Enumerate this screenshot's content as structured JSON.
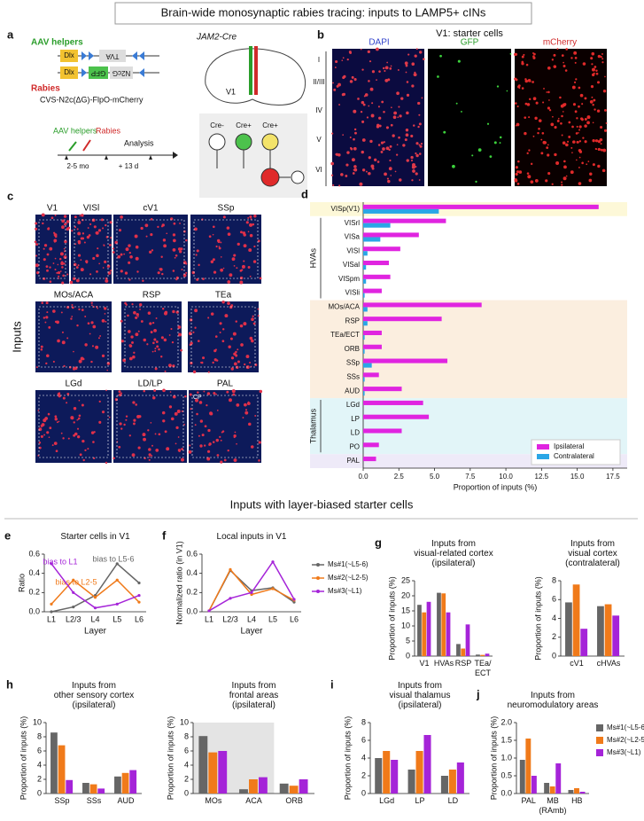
{
  "title": "Brain-wide monosynaptic rabies tracing: inputs to LAMP5+ cINs",
  "section_title": "Inputs with layer-biased starter cells",
  "panels": {
    "a": {
      "letter": "a",
      "aav": "AAV helpers",
      "constructs": [
        "Dlx",
        "TVA",
        "Dlx",
        "GFP",
        "N2cG"
      ],
      "rabies": "Rabies",
      "construct": "CVS-N2c(ΔG)-FlpO-mCherry",
      "mouse": "JAM2-Cre",
      "area": "V1",
      "timeline": [
        "AAV helpers",
        "Rabies",
        "Analysis",
        "2-5 mo",
        "+ 13 d"
      ],
      "cre": [
        "Cre-",
        "Cre+",
        "Cre+"
      ]
    },
    "b": {
      "letter": "b",
      "title": "V1: starter cells",
      "channels": [
        "DAPI",
        "GFP",
        "mCherry"
      ],
      "layers": [
        "I",
        "II/III",
        "IV",
        "V",
        "VI"
      ]
    },
    "c": {
      "letter": "c",
      "regions": [
        "V1",
        "VISl",
        "cV1",
        "SSp",
        "MOs/ACA",
        "RSP",
        "TEa",
        "LGd",
        "LD/LP",
        "PAL"
      ],
      "inset": "CP",
      "side": "Inputs"
    }
  },
  "chart_data": [
    {
      "type": "hbar",
      "panel": "d",
      "categories": [
        "VISp(V1)",
        "VISrl",
        "VISa",
        "VISl",
        "VISal",
        "VISpm",
        "VISli",
        "MOs/ACA",
        "RSP",
        "TEa/ECT",
        "ORB",
        "SSp",
        "SSs",
        "AUD",
        "LGd",
        "LP",
        "LD",
        "PO",
        "PAL"
      ],
      "series": [
        {
          "name": "Ipsilateral",
          "color": "#e024e0",
          "values": [
            16.5,
            5.8,
            3.9,
            2.6,
            1.8,
            1.9,
            1.3,
            8.3,
            5.5,
            1.3,
            1.3,
            5.9,
            1.1,
            2.7,
            4.2,
            4.6,
            2.7,
            1.1,
            0.9
          ]
        },
        {
          "name": "Contralateral",
          "color": "#2aa6e6",
          "values": [
            5.3,
            1.9,
            1.2,
            0.3,
            0.2,
            0.2,
            0.1,
            0.3,
            0.3,
            0.1,
            0.1,
            0.6,
            0.1,
            0.1,
            0,
            0,
            0,
            0,
            0
          ]
        }
      ],
      "xlim": [
        0,
        18.5
      ],
      "xticks": [
        {
          "value": 0,
          "label": "0.0"
        },
        {
          "value": 2.5,
          "label": "2.5"
        },
        {
          "value": 5,
          "label": "5.0"
        },
        {
          "value": 7.5,
          "label": "7.5"
        },
        {
          "value": 10,
          "label": "10.0"
        },
        {
          "value": 12.5,
          "label": "12.5"
        },
        {
          "value": 15,
          "label": "15.0"
        },
        {
          "value": 17.5,
          "label": "17.5"
        }
      ],
      "xlabel": "Proportion of inputs (%)",
      "annotations": [
        "HVAs",
        "Thalamus"
      ],
      "legend": "lower right"
    },
    {
      "type": "line",
      "panel": "e",
      "title": "Starter cells in V1",
      "categories": [
        "L1",
        "L2/3",
        "L4",
        "L5",
        "L6"
      ],
      "series": [
        {
          "name": "bias to L5-6",
          "color": "#666666",
          "values": [
            0,
            0.05,
            0.17,
            0.5,
            0.3
          ]
        },
        {
          "name": "bias to L2-5",
          "color": "#f07a1a",
          "values": [
            0.08,
            0.33,
            0.15,
            0.33,
            0.1
          ]
        },
        {
          "name": "bias to L1",
          "color": "#a524d8",
          "values": [
            0.5,
            0.2,
            0.04,
            0.08,
            0.17
          ]
        }
      ],
      "ylim": [
        0,
        0.6
      ],
      "yticks": [
        {
          "value": 0,
          "label": "0.0"
        },
        {
          "value": 0.2,
          "label": "0.2"
        },
        {
          "value": 0.4,
          "label": "0.4"
        },
        {
          "value": 0.6,
          "label": "0.6"
        }
      ],
      "xlabel": "Layer",
      "ylabel": "Ratio",
      "legend": "inline"
    },
    {
      "type": "line",
      "panel": "f",
      "title": "Local inputs in V1",
      "categories": [
        "L1",
        "L2/3",
        "L4",
        "L5",
        "L6"
      ],
      "series": [
        {
          "name": "Ms#1(~L5-6)",
          "color": "#666666",
          "values": [
            0.01,
            0.43,
            0.22,
            0.25,
            0.1
          ]
        },
        {
          "name": "Ms#2(~L2-5)",
          "color": "#f07a1a",
          "values": [
            0.01,
            0.44,
            0.18,
            0.24,
            0.12
          ]
        },
        {
          "name": "Ms#3(~L1)",
          "color": "#a524d8",
          "values": [
            0.01,
            0.14,
            0.2,
            0.52,
            0.13
          ]
        }
      ],
      "ylim": [
        0,
        0.6
      ],
      "yticks": [
        {
          "value": 0,
          "label": "0.0"
        },
        {
          "value": 0.2,
          "label": "0.2"
        },
        {
          "value": 0.4,
          "label": "0.4"
        },
        {
          "value": 0.6,
          "label": "0.6"
        }
      ],
      "xlabel": "Layer",
      "ylabel": "Normalized ratio (in V1)",
      "legend": "right"
    },
    {
      "type": "bar",
      "panel": "g",
      "title": "Inputs from\nvisual-related cortex\n(ipsilateral)",
      "categories": [
        "V1",
        "HVAs",
        "RSP",
        "TEa/\nECT"
      ],
      "series": [
        {
          "color": "#666666",
          "values": [
            17,
            21,
            4,
            0.5
          ]
        },
        {
          "color": "#f07a1a",
          "values": [
            14.5,
            20.8,
            2.5,
            0.4
          ]
        },
        {
          "color": "#a524d8",
          "values": [
            18,
            14.5,
            10.5,
            0.8
          ]
        }
      ],
      "ylim": [
        0,
        25
      ],
      "yticks": [
        0,
        5,
        10,
        15,
        20,
        25
      ],
      "ylabel": "Proportion of inputs (%)"
    },
    {
      "type": "bar",
      "title": "Inputs from\nvisual cortex\n(contralateral)",
      "categories": [
        "cV1",
        "cHVAs"
      ],
      "series": [
        {
          "color": "#666666",
          "values": [
            5.7,
            5.3
          ]
        },
        {
          "color": "#f07a1a",
          "values": [
            7.6,
            5.5
          ]
        },
        {
          "color": "#a524d8",
          "values": [
            2.9,
            4.3
          ]
        }
      ],
      "ylim": [
        0,
        8
      ],
      "yticks": [
        0,
        2,
        4,
        6,
        8
      ],
      "ylabel": "Proportion of inputs (%)"
    },
    {
      "type": "bar",
      "panel": "h",
      "title": "Inputs from\nother sensory cortex\n(ipsilateral)",
      "categories": [
        "SSp",
        "SSs",
        "AUD"
      ],
      "series": [
        {
          "color": "#666666",
          "values": [
            8.6,
            1.5,
            2.4
          ]
        },
        {
          "color": "#f07a1a",
          "values": [
            6.8,
            1.3,
            2.9
          ]
        },
        {
          "color": "#a524d8",
          "values": [
            1.9,
            0.7,
            3.3
          ]
        }
      ],
      "ylim": [
        0,
        10
      ],
      "yticks": [
        0,
        2,
        4,
        6,
        8,
        10
      ],
      "ylabel": "Proportion of inputs (%)"
    },
    {
      "type": "bar",
      "title": "Inputs from\nfrontal areas\n(ipsilateral)",
      "categories": [
        "MOs",
        "ACA",
        "ORB"
      ],
      "series": [
        {
          "color": "#666666",
          "values": [
            8.1,
            0.6,
            1.4
          ]
        },
        {
          "color": "#f07a1a",
          "values": [
            5.8,
            2.0,
            1.1
          ]
        },
        {
          "color": "#a524d8",
          "values": [
            6.0,
            2.3,
            2.0
          ]
        }
      ],
      "ylim": [
        0,
        10
      ],
      "yticks": [
        0,
        2,
        4,
        6,
        8,
        10
      ],
      "ylabel": "Proportion of inputs (%)"
    },
    {
      "type": "bar",
      "panel": "i",
      "title": "Inputs from\nvisual thalamus\n(ipsilateral)",
      "categories": [
        "LGd",
        "LP",
        "LD"
      ],
      "series": [
        {
          "color": "#666666",
          "values": [
            4,
            2.7,
            2
          ]
        },
        {
          "color": "#f07a1a",
          "values": [
            4.8,
            4.8,
            2.7
          ]
        },
        {
          "color": "#a524d8",
          "values": [
            3.8,
            6.6,
            3.5
          ]
        }
      ],
      "ylim": [
        0,
        8
      ],
      "yticks": [
        0,
        2,
        4,
        6,
        8
      ],
      "ylabel": "Proportion of inputs (%)"
    },
    {
      "type": "bar",
      "panel": "j",
      "title": "Inputs from\nneuromodulatory areas",
      "categories": [
        "PAL",
        "MB\n(RAmb)",
        "HB"
      ],
      "series": [
        {
          "name": "Ms#1(~L5-6)",
          "color": "#666666",
          "values": [
            0.95,
            0.3,
            0.1
          ]
        },
        {
          "name": "Ms#2(~L2-5)",
          "color": "#f07a1a",
          "values": [
            1.55,
            0.2,
            0.15
          ]
        },
        {
          "name": "Ms#3(~L1)",
          "color": "#a524d8",
          "values": [
            0.5,
            0.85,
            0.05
          ]
        }
      ],
      "ylim": [
        0,
        2
      ],
      "yticks": [
        {
          "value": 0,
          "label": "0.0"
        },
        {
          "value": 0.5,
          "label": "0.5"
        },
        {
          "value": 1,
          "label": "1.0"
        },
        {
          "value": 1.5,
          "label": "1.5"
        },
        {
          "value": 2,
          "label": "2.0"
        }
      ],
      "ylabel": "Proportion of inputs (%)",
      "legend": "right"
    }
  ]
}
